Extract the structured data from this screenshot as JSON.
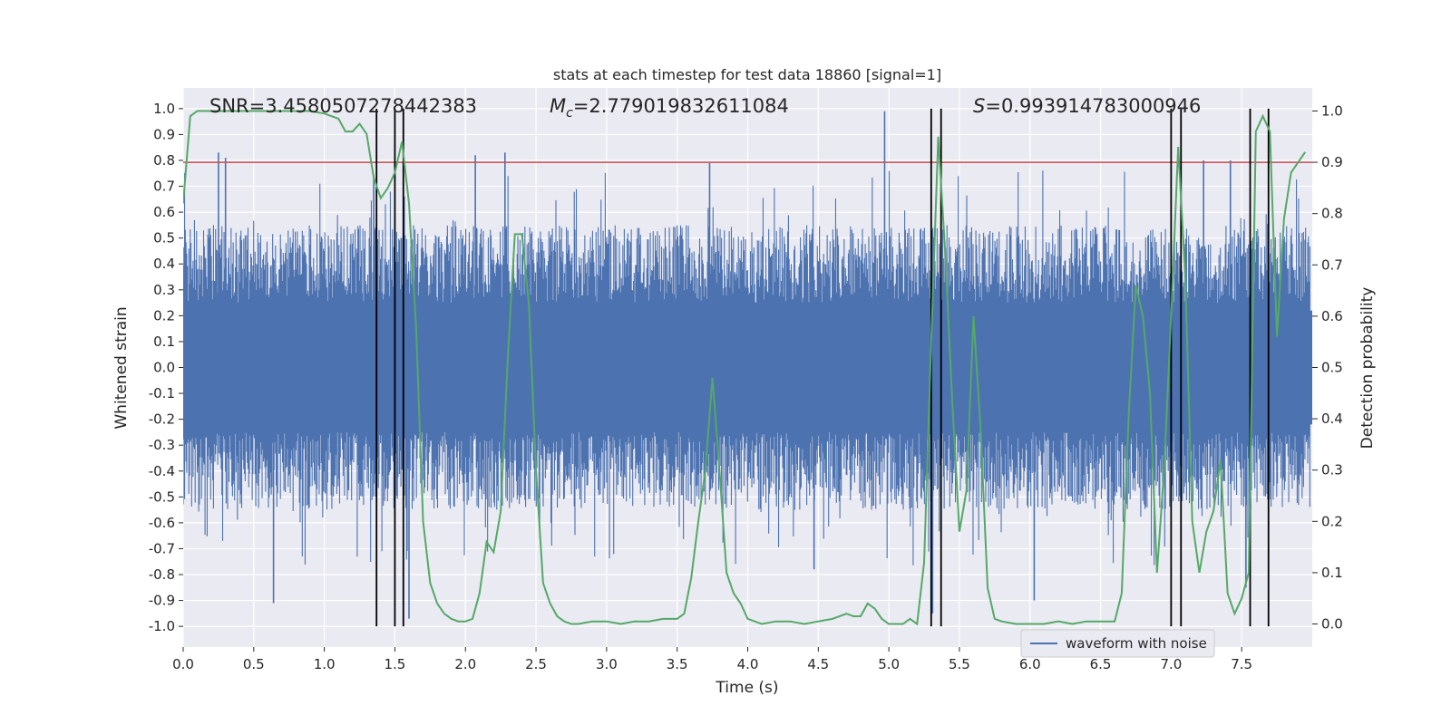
{
  "chart_data": {
    "type": "line",
    "title": "stats at each timestep for test data 18860 [signal=1]",
    "xlabel": "Time (s)",
    "ylabel": "Whitened strain",
    "y2label": "Detection probability",
    "xlim": [
      0.0,
      8.0
    ],
    "ylim": [
      -1.08,
      1.08
    ],
    "y2lim": [
      -0.045,
      1.045
    ],
    "xticks": [
      "0.0",
      "0.5",
      "1.0",
      "1.5",
      "2.0",
      "2.5",
      "3.0",
      "3.5",
      "4.0",
      "4.5",
      "5.0",
      "5.5",
      "6.0",
      "6.5",
      "7.0",
      "7.5"
    ],
    "yticks": [
      "-1.0",
      "-0.9",
      "-0.8",
      "-0.7",
      "-0.6",
      "-0.5",
      "-0.4",
      "-0.3",
      "-0.2",
      "-0.1",
      "0.0",
      "0.1",
      "0.2",
      "0.3",
      "0.4",
      "0.5",
      "0.6",
      "0.7",
      "0.8",
      "0.9",
      "1.0"
    ],
    "y2ticks": [
      "0.0",
      "0.1",
      "0.2",
      "0.3",
      "0.4",
      "0.5",
      "0.6",
      "0.7",
      "0.8",
      "0.9",
      "1.0"
    ],
    "annotations": {
      "snr": "SNR=3.4580507278442383",
      "mc_symbol": "M",
      "mc_sub": "c",
      "mc_value": "=2.779019832611084",
      "s_symbol": "S",
      "s_value": "=0.993914783000946"
    },
    "legend": {
      "label": "waveform with noise",
      "location": "lower-right"
    },
    "threshold": {
      "value": 0.9,
      "axis": "right"
    },
    "event_lines": [
      1.37,
      1.5,
      1.56,
      5.3,
      5.37,
      7.0,
      7.07,
      7.56,
      7.69
    ],
    "strain_envelope": {
      "n_samples": 1600,
      "typical_upper": [
        0.25,
        0.55
      ],
      "typical_lower": [
        -0.25,
        -0.55
      ],
      "spike_peaks": [
        [
          0.25,
          0.83
        ],
        [
          0.3,
          0.81
        ],
        [
          0.64,
          -0.91
        ],
        [
          1.35,
          0.73
        ],
        [
          2.07,
          0.82
        ],
        [
          2.28,
          0.83
        ],
        [
          3.73,
          0.79
        ],
        [
          4.47,
          -0.78
        ],
        [
          4.97,
          0.99
        ],
        [
          5.31,
          -0.95
        ],
        [
          6.03,
          -0.9
        ],
        [
          7.42,
          0.8
        ],
        [
          7.23,
          0.8
        ],
        [
          7.53,
          -0.85
        ],
        [
          1.6,
          -0.97
        ]
      ]
    },
    "series": [
      {
        "name": "detection probability",
        "axis": "right",
        "x": [
          0.0,
          0.05,
          0.1,
          0.2,
          0.3,
          0.4,
          0.5,
          0.6,
          0.7,
          0.8,
          0.9,
          1.0,
          1.1,
          1.15,
          1.2,
          1.25,
          1.3,
          1.35,
          1.4,
          1.45,
          1.5,
          1.55,
          1.6,
          1.65,
          1.7,
          1.75,
          1.8,
          1.85,
          1.9,
          1.95,
          2.0,
          2.05,
          2.1,
          2.15,
          2.2,
          2.25,
          2.3,
          2.35,
          2.4,
          2.45,
          2.5,
          2.55,
          2.6,
          2.65,
          2.7,
          2.75,
          2.8,
          2.9,
          3.0,
          3.1,
          3.2,
          3.3,
          3.4,
          3.5,
          3.55,
          3.6,
          3.65,
          3.7,
          3.75,
          3.8,
          3.85,
          3.9,
          3.95,
          4.0,
          4.1,
          4.2,
          4.3,
          4.4,
          4.5,
          4.6,
          4.7,
          4.75,
          4.8,
          4.85,
          4.9,
          4.95,
          5.0,
          5.05,
          5.1,
          5.15,
          5.2,
          5.25,
          5.3,
          5.35,
          5.4,
          5.45,
          5.5,
          5.55,
          5.6,
          5.65,
          5.7,
          5.75,
          5.8,
          5.9,
          6.0,
          6.1,
          6.2,
          6.3,
          6.4,
          6.5,
          6.6,
          6.65,
          6.7,
          6.75,
          6.8,
          6.85,
          6.9,
          6.95,
          7.0,
          7.05,
          7.1,
          7.15,
          7.2,
          7.25,
          7.3,
          7.35,
          7.4,
          7.45,
          7.5,
          7.55,
          7.6,
          7.65,
          7.7,
          7.75,
          7.8,
          7.85,
          7.9,
          7.95
        ],
        "values": [
          0.82,
          0.99,
          1.0,
          1.0,
          1.0,
          1.0,
          1.0,
          1.0,
          1.0,
          1.0,
          1.0,
          0.995,
          0.985,
          0.96,
          0.96,
          0.975,
          0.955,
          0.87,
          0.83,
          0.85,
          0.88,
          0.94,
          0.82,
          0.58,
          0.2,
          0.08,
          0.04,
          0.02,
          0.01,
          0.005,
          0.005,
          0.01,
          0.06,
          0.16,
          0.14,
          0.22,
          0.52,
          0.76,
          0.76,
          0.62,
          0.3,
          0.08,
          0.04,
          0.015,
          0.005,
          0.0,
          0.0,
          0.005,
          0.005,
          0.0,
          0.005,
          0.005,
          0.01,
          0.01,
          0.02,
          0.09,
          0.2,
          0.3,
          0.48,
          0.3,
          0.1,
          0.06,
          0.04,
          0.01,
          0.0,
          0.005,
          0.005,
          0.0,
          0.005,
          0.01,
          0.02,
          0.015,
          0.015,
          0.04,
          0.03,
          0.01,
          0.0,
          0.0,
          0.0,
          0.01,
          0.0,
          0.12,
          0.55,
          0.95,
          0.72,
          0.43,
          0.18,
          0.26,
          0.6,
          0.38,
          0.07,
          0.01,
          0.005,
          0.0,
          0.0,
          0.0,
          0.005,
          0.0,
          0.005,
          0.005,
          0.005,
          0.06,
          0.41,
          0.66,
          0.6,
          0.45,
          0.1,
          0.3,
          0.6,
          0.93,
          0.68,
          0.2,
          0.1,
          0.18,
          0.22,
          0.32,
          0.06,
          0.02,
          0.05,
          0.1,
          0.96,
          0.99,
          0.96,
          0.56,
          0.79,
          0.88,
          0.9,
          0.92
        ]
      }
    ]
  }
}
